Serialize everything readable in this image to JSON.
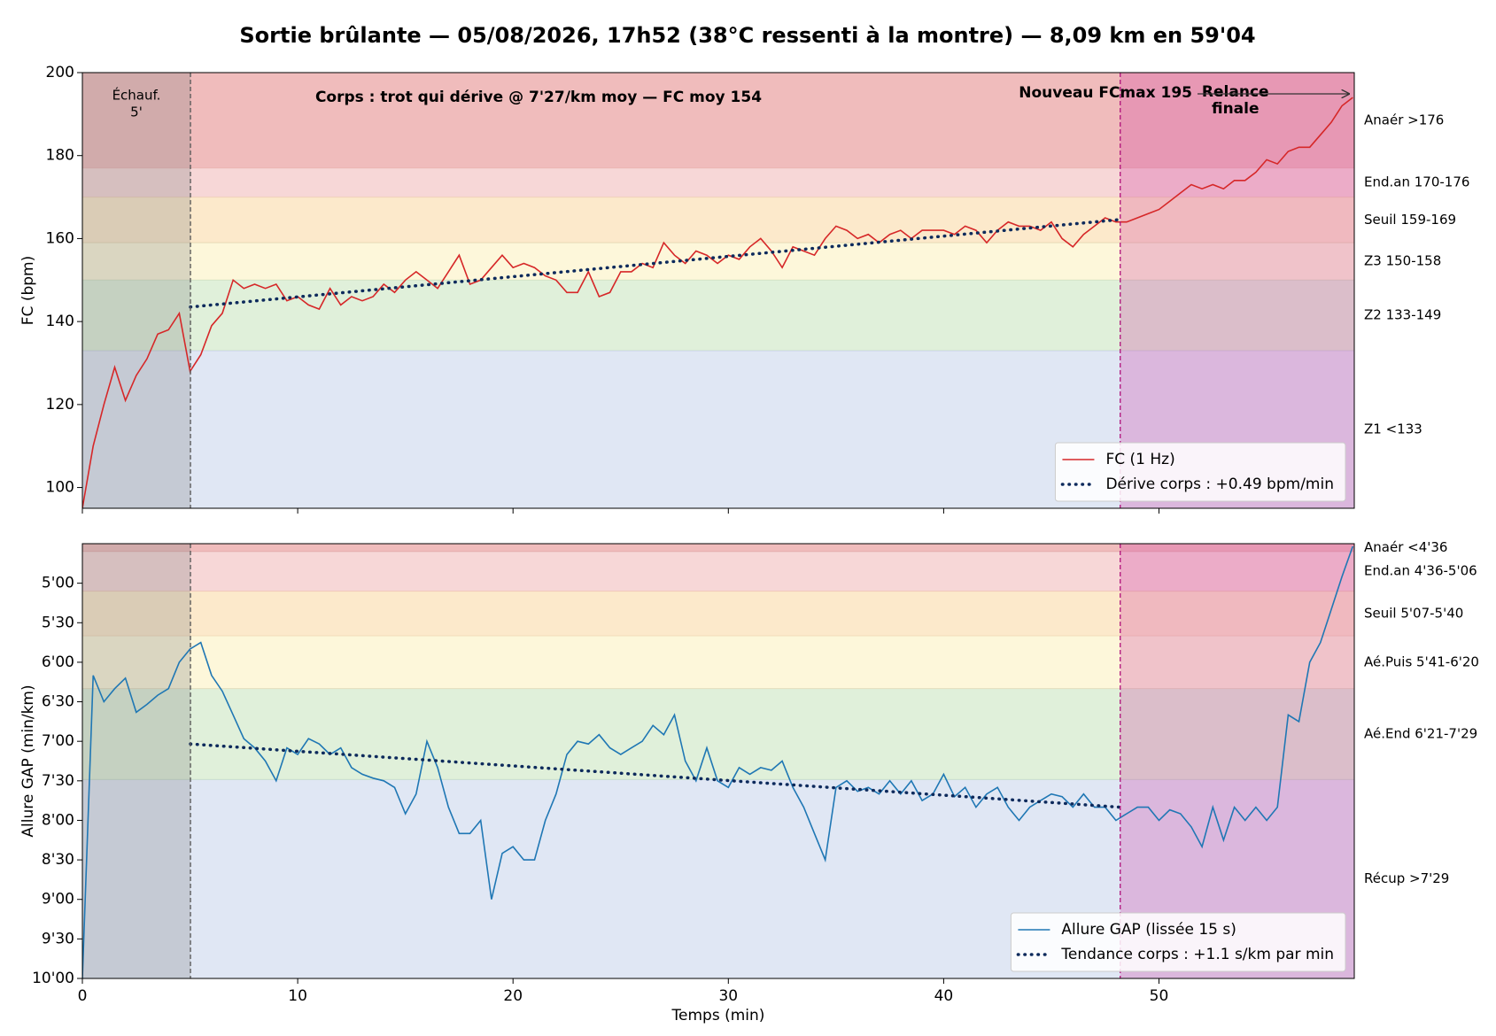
{
  "chart_data": [
    {
      "type": "line",
      "title": "Sortie brûlante — 05/08/2026, 17h52 (38°C ressenti à la montre) — 8,09 km en 59'04",
      "ylabel": "FC (bpm)",
      "xlim": [
        0,
        59.07
      ],
      "ylim": [
        95,
        200
      ],
      "yticks": [
        100,
        120,
        140,
        160,
        180,
        200
      ],
      "x": [
        0,
        0.5,
        1,
        1.5,
        2,
        2.5,
        3,
        3.5,
        4,
        4.5,
        5,
        5.5,
        6,
        6.5,
        7,
        7.5,
        8,
        8.5,
        9,
        9.5,
        10,
        10.5,
        11,
        11.5,
        12,
        12.5,
        13,
        13.5,
        14,
        14.5,
        15,
        15.5,
        16,
        16.5,
        17,
        17.5,
        18,
        18.5,
        19,
        19.5,
        20,
        20.5,
        21,
        21.5,
        22,
        22.5,
        23,
        23.5,
        24,
        24.5,
        25,
        25.5,
        26,
        26.5,
        27,
        27.5,
        28,
        28.5,
        29,
        29.5,
        30,
        30.5,
        31,
        31.5,
        32,
        32.5,
        33,
        33.5,
        34,
        34.5,
        35,
        35.5,
        36,
        36.5,
        37,
        37.5,
        38,
        38.5,
        39,
        39.5,
        40,
        40.5,
        41,
        41.5,
        42,
        42.5,
        43,
        43.5,
        44,
        44.5,
        45,
        45.5,
        46,
        46.5,
        47,
        47.5,
        48,
        48.5,
        49,
        49.5,
        50,
        50.5,
        51,
        51.5,
        52,
        52.5,
        53,
        53.5,
        54,
        54.5,
        55,
        55.5,
        56,
        56.5,
        57,
        57.5,
        58,
        58.5,
        59
      ],
      "series": [
        {
          "name": "FC (1 Hz)",
          "color": "#d62728",
          "style": "solid",
          "values": [
            95,
            110,
            120,
            129,
            121,
            127,
            131,
            137,
            138,
            142,
            128,
            132,
            139,
            142,
            150,
            148,
            149,
            148,
            149,
            145,
            146,
            144,
            143,
            148,
            144,
            146,
            145,
            146,
            149,
            147,
            150,
            152,
            150,
            148,
            152,
            156,
            149,
            150,
            153,
            156,
            153,
            154,
            153,
            151,
            150,
            147,
            147,
            152,
            146,
            147,
            152,
            152,
            154,
            153,
            159,
            156,
            154,
            157,
            156,
            154,
            156,
            155,
            158,
            160,
            157,
            153,
            158,
            157,
            156,
            160,
            163,
            162,
            160,
            161,
            159,
            161,
            162,
            160,
            162,
            162,
            162,
            161,
            163,
            162,
            159,
            162,
            164,
            163,
            163,
            162,
            164,
            160,
            158,
            161,
            163,
            165,
            164,
            164,
            165,
            166,
            167,
            169,
            171,
            173,
            172,
            173,
            172,
            174,
            174,
            176,
            179,
            178,
            181,
            182,
            182,
            185,
            188,
            192,
            194
          ]
        },
        {
          "name": "Dérive corps : +0.49 bpm/min",
          "color": "#0d2a5c",
          "style": "dotted",
          "x": [
            5.02,
            48.2
          ],
          "values": [
            143.5,
            164.6
          ]
        }
      ],
      "zones": [
        {
          "label": "Z1 <133",
          "range": [
            95,
            133
          ],
          "color": "#e0e7f4",
          "text_color": "#3a5a9c"
        },
        {
          "label": "Z2 133-149",
          "range": [
            133,
            150
          ],
          "color": "#e0f0da",
          "text_color": "#2e7d32"
        },
        {
          "label": "Z3 150-158",
          "range": [
            150,
            159
          ],
          "color": "#fdf7da",
          "text_color": "#7a5c10"
        },
        {
          "label": "Seuil 159-169",
          "range": [
            159,
            170
          ],
          "color": "#fce9cb",
          "text_color": "#c07a2a"
        },
        {
          "label": "End.an 170-176",
          "range": [
            170,
            177
          ],
          "color": "#f7d7d7",
          "text_color": "#c0392b"
        },
        {
          "label": "Anaér >176",
          "range": [
            177,
            200
          ],
          "color": "#f0bcbc",
          "text_color": "#8b1a1a"
        }
      ],
      "regions": [
        {
          "x": [
            0,
            5.02
          ],
          "label": [
            "Échauf.",
            "5'"
          ],
          "color": "#808080",
          "line_color": "#555555"
        },
        {
          "x": [
            48.2,
            59.07
          ],
          "label": [
            "Relance",
            "finale"
          ],
          "color": "#d23ca0",
          "line_color": "#b0107a"
        }
      ],
      "annotations": [
        "Corps : trot qui dérive @ 7'27/km moy — FC moy 154",
        "Nouveau FCmax 195"
      ],
      "legend": "lower right"
    },
    {
      "type": "line",
      "ylabel": "Allure GAP (min/km)",
      "xlabel": "Temps (min)",
      "xlim": [
        0,
        59.07
      ],
      "xticks": [
        0,
        10,
        20,
        30,
        40,
        50
      ],
      "ylim": [
        270,
        600
      ],
      "y_inverted": true,
      "yticks": [
        {
          "value": 300,
          "label": "5'00"
        },
        {
          "value": 330,
          "label": "5'30"
        },
        {
          "value": 360,
          "label": "6'00"
        },
        {
          "value": 390,
          "label": "6'30"
        },
        {
          "value": 420,
          "label": "7'00"
        },
        {
          "value": 450,
          "label": "7'30"
        },
        {
          "value": 480,
          "label": "8'00"
        },
        {
          "value": 510,
          "label": "8'30"
        },
        {
          "value": 540,
          "label": "9'00"
        },
        {
          "value": 570,
          "label": "9'30"
        },
        {
          "value": 600,
          "label": "10'00"
        }
      ],
      "x": [
        0,
        0.5,
        1,
        1.5,
        2,
        2.5,
        3,
        3.5,
        4,
        4.5,
        5,
        5.5,
        6,
        6.5,
        7,
        7.5,
        8,
        8.5,
        9,
        9.5,
        10,
        10.5,
        11,
        11.5,
        12,
        12.5,
        13,
        13.5,
        14,
        14.5,
        15,
        15.5,
        16,
        16.5,
        17,
        17.5,
        18,
        18.5,
        19,
        19.5,
        20,
        20.5,
        21,
        21.5,
        22,
        22.5,
        23,
        23.5,
        24,
        24.5,
        25,
        25.5,
        26,
        26.5,
        27,
        27.5,
        28,
        28.5,
        29,
        29.5,
        30,
        30.5,
        31,
        31.5,
        32,
        32.5,
        33,
        33.5,
        34,
        34.5,
        35,
        35.5,
        36,
        36.5,
        37,
        37.5,
        38,
        38.5,
        39,
        39.5,
        40,
        40.5,
        41,
        41.5,
        42,
        42.5,
        43,
        43.5,
        44,
        44.5,
        45,
        45.5,
        46,
        46.5,
        47,
        47.5,
        48,
        48.5,
        49,
        49.5,
        50,
        50.5,
        51,
        51.5,
        52,
        52.5,
        53,
        53.5,
        54,
        54.5,
        55,
        55.5,
        56,
        56.5,
        57,
        57.5,
        58,
        58.5,
        59
      ],
      "series": [
        {
          "name": "Allure GAP (lissée 15 s)",
          "color": "#1f77b4",
          "style": "solid",
          "values": [
            600,
            370,
            390,
            380,
            372,
            398,
            392,
            385,
            380,
            360,
            350,
            345,
            370,
            382,
            400,
            418,
            425,
            435,
            450,
            425,
            430,
            418,
            422,
            430,
            425,
            440,
            445,
            448,
            450,
            455,
            475,
            460,
            420,
            440,
            470,
            490,
            490,
            480,
            540,
            505,
            500,
            510,
            510,
            480,
            460,
            430,
            420,
            422,
            415,
            425,
            430,
            425,
            420,
            408,
            415,
            400,
            435,
            450,
            425,
            450,
            455,
            440,
            445,
            440,
            442,
            435,
            455,
            470,
            490,
            510,
            455,
            450,
            458,
            455,
            460,
            450,
            460,
            450,
            465,
            460,
            445,
            462,
            455,
            470,
            460,
            455,
            470,
            480,
            470,
            465,
            460,
            462,
            470,
            460,
            470,
            470,
            480,
            475,
            470,
            470,
            480,
            472,
            475,
            485,
            500,
            470,
            495,
            470,
            480,
            470,
            480,
            470,
            400,
            405,
            360,
            345,
            320,
            295,
            272
          ]
        },
        {
          "name": "Tendance corps : +1.1 s/km par min",
          "color": "#0d2a5c",
          "style": "dotted",
          "x": [
            5.02,
            48.2
          ],
          "values": [
            422,
            470
          ]
        }
      ],
      "zones": [
        {
          "label": "Récup >7'29",
          "range": [
            449,
            600
          ],
          "color": "#e0e7f4",
          "text_color": "#3a5a9c"
        },
        {
          "label": "Aé.End 6'21-7'29",
          "range": [
            380,
            449
          ],
          "color": "#e0f0da",
          "text_color": "#2e7d32"
        },
        {
          "label": "Aé.Puis 5'41-6'20",
          "range": [
            340,
            380
          ],
          "color": "#fdf7da",
          "text_color": "#7a5c10"
        },
        {
          "label": "Seuil 5'07-5'40",
          "range": [
            306,
            340
          ],
          "color": "#fce9cb",
          "text_color": "#c07a2a"
        },
        {
          "label": "End.an 4'36-5'06",
          "range": [
            276,
            306
          ],
          "color": "#f7d7d7",
          "text_color": "#c0392b"
        },
        {
          "label": "Anaér <4'36",
          "range": [
            270,
            276
          ],
          "color": "#f0bcbc",
          "text_color": "#8b1a1a"
        }
      ],
      "regions": [
        {
          "x": [
            0,
            5.02
          ],
          "color": "#808080",
          "line_color": "#555555"
        },
        {
          "x": [
            48.2,
            59.07
          ],
          "color": "#d23ca0",
          "line_color": "#b0107a"
        }
      ],
      "legend": "lower right"
    }
  ]
}
